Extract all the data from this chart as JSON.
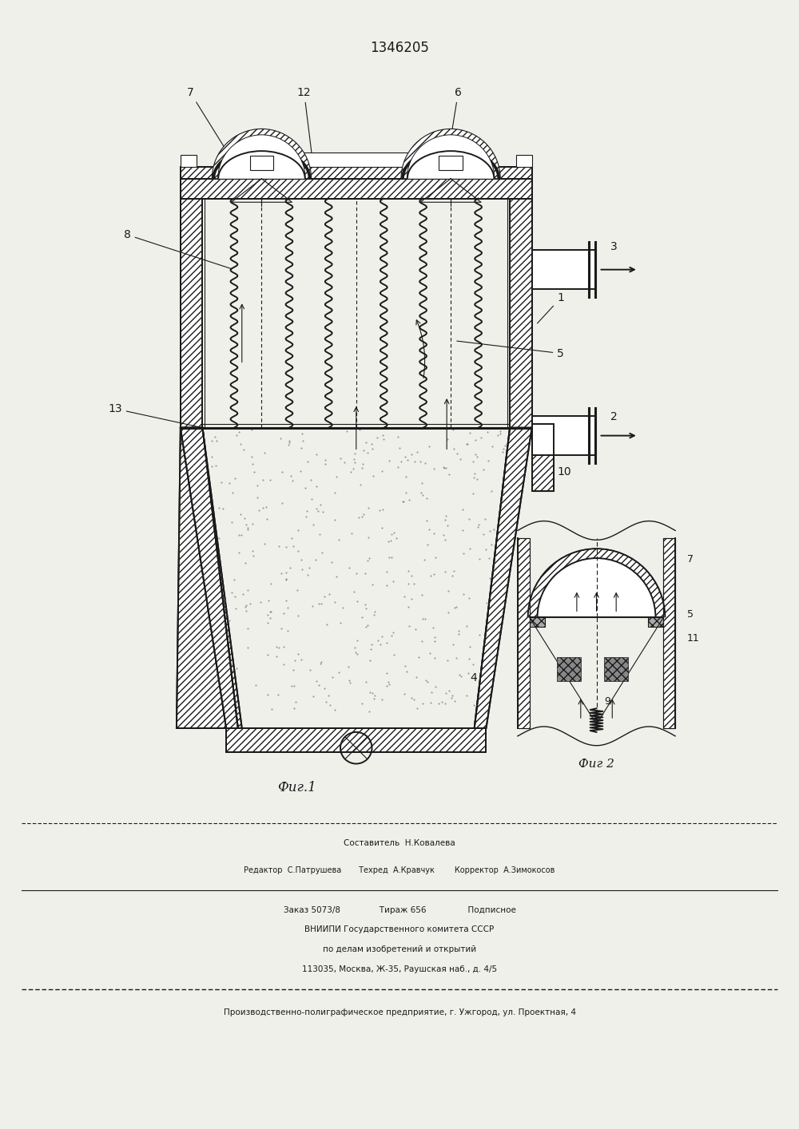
{
  "patent_number": "1346205",
  "bg": "#f0f0eb",
  "lc": "#1a1a1a",
  "fig1_label": "Фиг.1",
  "fig2_label": "Фиг 2",
  "footer": [
    "Составитель  Н.Ковалева",
    "Редактор  С.Патрушева       Техред  А.Кравчук        Корректор  А.Зимокосов",
    "Заказ 5073/8               Тираж 656                Подписное",
    "ВНИИПИ Государственного комитета СССР",
    "по делам изобретений и открытий",
    "113035, Москва, Ж-35, Раушская наб., д. 4/5",
    "Производственно-полиграфическое предприятие, г. Ужгород, ул. Проектная, 4"
  ]
}
